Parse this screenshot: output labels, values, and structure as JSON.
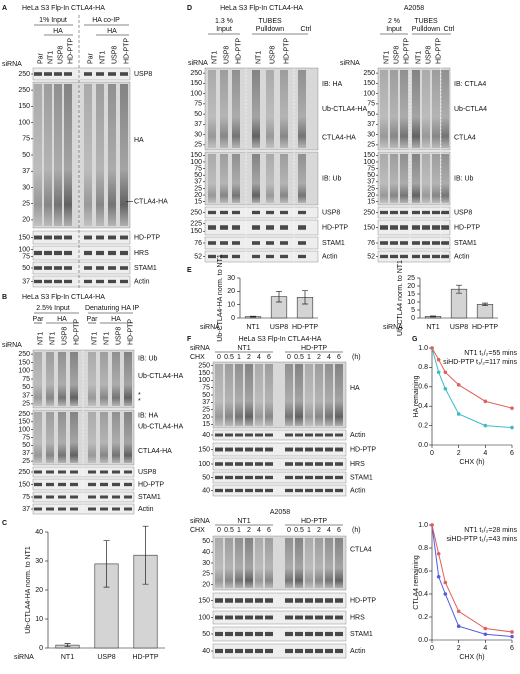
{
  "panels": {
    "A": {
      "label": "A",
      "title": "HeLa S3 Flp-In CTLA4-HA",
      "headers": [
        "1% Input",
        "HA co-IP"
      ],
      "groups": [
        "HA",
        "HA"
      ],
      "siRNA": "siRNA",
      "lanes": [
        "Par",
        "NT1",
        "USP8",
        "HD-PTP",
        "Par",
        "NT1",
        "USP8",
        "HD-PTP"
      ],
      "blots": [
        {
          "markers": [
            "250"
          ],
          "labels": [
            "USP8"
          ]
        },
        {
          "markers": [
            "250",
            "150",
            "100",
            "75",
            "50",
            "37",
            "30",
            "25",
            "20"
          ],
          "labels": [
            "HA",
            "CTLA4-HA"
          ]
        },
        {
          "markers": [
            "150"
          ],
          "labels": [
            "HD-PTP"
          ]
        },
        {
          "markers": [
            "100",
            "75"
          ],
          "labels": [
            "HRS"
          ]
        },
        {
          "markers": [
            "50"
          ],
          "labels": [
            "STAM1"
          ]
        },
        {
          "markers": [
            "37"
          ],
          "labels": [
            "Actin"
          ]
        }
      ]
    },
    "B": {
      "label": "B",
      "title": "HeLa S3 Flp-In CTLA4-HA",
      "headers": [
        "2.5% Input",
        "Denaturing HA IP"
      ],
      "groups": [
        "Par",
        "HA",
        "Par",
        "HA"
      ],
      "siRNA": "siRNA",
      "lanes": [
        "NT1",
        "NT1",
        "USP8",
        "HD-PTP",
        "NT1",
        "NT1",
        "USP8",
        "HD-PTP"
      ],
      "blots": [
        {
          "markers": [
            "250",
            "150",
            "100",
            "75",
            "50",
            "37",
            "25"
          ],
          "labels": [
            "IB: Ub",
            "Ub-CTLA4-HA",
            "*",
            "*"
          ]
        },
        {
          "markers": [
            "250",
            "150",
            "100",
            "75",
            "50",
            "37",
            "25"
          ],
          "labels": [
            "IB: HA",
            "Ub-CTLA4-HA",
            "CTLA4-HA"
          ]
        },
        {
          "markers": [
            "250"
          ],
          "labels": [
            "USP8"
          ]
        },
        {
          "markers": [
            "150"
          ],
          "labels": [
            "HD-PTP"
          ]
        },
        {
          "markers": [
            "75"
          ],
          "labels": [
            "STAM1"
          ]
        },
        {
          "markers": [
            "37"
          ],
          "labels": [
            "Actin"
          ]
        }
      ]
    },
    "C": {
      "label": "C"
    },
    "D": {
      "label": "D",
      "left": {
        "title": "HeLa S3 Flp-In CTLA4-HA",
        "headers": [
          "1.3 %",
          "Input",
          "TUBES",
          "Pulldown",
          "Ctrl"
        ],
        "siRNA": "siRNA",
        "lanes": [
          "NT1",
          "USP8",
          "HD-PTP",
          "NT1",
          "USP8",
          "HD-PTP"
        ],
        "blots": [
          {
            "markers": [
              "250",
              "150",
              "100",
              "75",
              "50",
              "37",
              "30",
              "25"
            ],
            "labels": [
              "IB: HA",
              "Ub-CTLA4-HA",
              "CTLA4-HA"
            ]
          },
          {
            "markers": [
              "150",
              "100",
              "75",
              "50",
              "37",
              "25",
              "20",
              "15"
            ],
            "labels": [
              "IB: Ub"
            ]
          },
          {
            "markers": [
              "250"
            ],
            "labels": [
              "USP8"
            ]
          },
          {
            "markers": [
              "225",
              "150"
            ],
            "labels": [
              "HD-PTP"
            ]
          },
          {
            "markers": [
              "76"
            ],
            "labels": [
              "STAM1"
            ]
          },
          {
            "markers": [
              "52"
            ],
            "labels": [
              "Actin"
            ]
          }
        ]
      },
      "right": {
        "title": "A2058",
        "headers": [
          "2 %",
          "Input",
          "TUBES",
          "Pulldown",
          "Ctrl"
        ],
        "siRNA": "siRNA",
        "lanes": [
          "NT1",
          "USP8",
          "HD-PTP",
          "NT1",
          "USP8",
          "HD-PTP"
        ],
        "blots": [
          {
            "markers": [
              "250",
              "150",
              "100",
              "75",
              "50",
              "37",
              "30",
              "25"
            ],
            "labels": [
              "IB: CTLA4",
              "Ub-CTLA4",
              "CTLA4"
            ]
          },
          {
            "markers": [
              "150",
              "100",
              "75",
              "50",
              "37",
              "25",
              "20",
              "15"
            ],
            "labels": [
              "IB: Ub"
            ]
          },
          {
            "markers": [
              "250"
            ],
            "labels": [
              "USP8"
            ]
          },
          {
            "markers": [
              "150"
            ],
            "labels": [
              "HD-PTP"
            ]
          },
          {
            "markers": [
              "76"
            ],
            "labels": [
              "STAM1"
            ]
          },
          {
            "markers": [
              "52"
            ],
            "labels": [
              "Actin"
            ]
          }
        ]
      }
    },
    "E": {
      "label": "E"
    },
    "F": {
      "label": "F",
      "top": {
        "title": "HeLa S3 Flp-In CTLA4-HA",
        "siRNA": "siRNA",
        "groups": [
          "NT1",
          "HD-PTP"
        ],
        "chx": "CHX",
        "times": [
          "0",
          "0.5",
          "1",
          "2",
          "4",
          "6",
          "0",
          "0.5",
          "1",
          "2",
          "4",
          "6"
        ],
        "unit": "(h)",
        "blots": [
          {
            "markers": [
              "250",
              "150",
              "100",
              "75",
              "50",
              "37",
              "25",
              "20",
              "15"
            ],
            "labels": [
              "HA"
            ]
          },
          {
            "markers": [
              "40"
            ],
            "labels": [
              "Actin"
            ]
          },
          {
            "markers": [
              "150"
            ],
            "labels": [
              "HD-PTP"
            ]
          },
          {
            "markers": [
              "100"
            ],
            "labels": [
              "HRS"
            ]
          },
          {
            "markers": [
              "50"
            ],
            "labels": [
              "STAM1"
            ]
          },
          {
            "markers": [
              "40"
            ],
            "labels": [
              "Actin"
            ]
          }
        ]
      },
      "bottom": {
        "title": "A2058",
        "siRNA": "siRNA",
        "groups": [
          "NT1",
          "HD-PTP"
        ],
        "chx": "CHX",
        "times": [
          "0",
          "0.5",
          "1",
          "2",
          "4",
          "6",
          "0",
          "0.5",
          "1",
          "2",
          "4",
          "6"
        ],
        "unit": "(h)",
        "blots": [
          {
            "markers": [
              "50",
              "40",
              "30",
              "25",
              "20"
            ],
            "labels": [
              "CTLA4"
            ]
          },
          {
            "markers": [
              "150"
            ],
            "labels": [
              "HD-PTP"
            ]
          },
          {
            "markers": [
              "100"
            ],
            "labels": [
              "HRS"
            ]
          },
          {
            "markers": [
              "50"
            ],
            "labels": [
              "STAM1"
            ]
          },
          {
            "markers": [
              "40"
            ],
            "labels": [
              "Actin"
            ]
          }
        ]
      }
    },
    "G": {
      "label": "G"
    }
  },
  "chart_data": [
    {
      "type": "bar",
      "ylabel": "Ub-CTLA4-HA norm. to NT1",
      "xlabel": "siRNA",
      "categories": [
        "NT1",
        "USP8",
        "HD-PTP"
      ],
      "values": [
        1,
        29,
        32
      ],
      "errors": [
        0.5,
        8,
        10
      ],
      "color": "#d4d4d4",
      "ylim": [
        0,
        40
      ],
      "yticks": [
        0,
        10,
        20,
        30,
        40
      ]
    },
    {
      "type": "bar",
      "ylabel": "Ub-CTLA4-HA norm. to NT1",
      "xlabel": "siRNA",
      "categories": [
        "NT1",
        "USP8",
        "HD-PTP"
      ],
      "values": [
        1,
        16,
        15.5
      ],
      "errors": [
        0.3,
        4,
        5
      ],
      "color": "#d4d4d4",
      "ylim": [
        0,
        30
      ],
      "yticks": [
        0,
        10,
        20,
        30
      ]
    },
    {
      "type": "bar",
      "ylabel": "Ub-CTLA4 norm. to NT1",
      "xlabel": "siRNA",
      "categories": [
        "NT1",
        "USP8",
        "HD-PTP"
      ],
      "values": [
        1,
        18,
        8.5
      ],
      "errors": [
        0.3,
        2.5,
        0.8
      ],
      "color": "#d4d4d4",
      "ylim": [
        0,
        25
      ],
      "yticks": [
        0,
        5,
        10,
        15,
        20,
        25
      ]
    },
    {
      "type": "line",
      "ylabel": "HA remaining",
      "xlabel": "CHX (h)",
      "x": [
        0,
        0.5,
        1,
        2,
        4,
        6
      ],
      "series": [
        {
          "name": "NT1 t₁/₂=55 mins",
          "color": "#3cbcc4",
          "values": [
            1.0,
            0.75,
            0.58,
            0.32,
            0.2,
            0.18
          ]
        },
        {
          "name": "siHD-PTP t₁/₂=117 mins",
          "color": "#e0605a",
          "values": [
            1.0,
            0.88,
            0.75,
            0.62,
            0.45,
            0.38
          ]
        }
      ],
      "xlim": [
        0,
        6
      ],
      "xticks": [
        0,
        2,
        4,
        6
      ],
      "ylim": [
        0,
        1
      ],
      "yticks": [
        {
          "value": 0,
          "label": "0.0"
        },
        0.2,
        0.4,
        0.6,
        0.8,
        {
          "value": 1,
          "label": "1.0"
        }
      ]
    },
    {
      "type": "line",
      "ylabel": "CTLA4 remaining",
      "xlabel": "CHX (h)",
      "x": [
        0,
        0.5,
        1,
        2,
        4,
        6
      ],
      "series": [
        {
          "name": "NT1 t₁/₂=28 mins",
          "color": "#5a5ae0",
          "values": [
            1.0,
            0.55,
            0.4,
            0.12,
            0.05,
            0.03
          ]
        },
        {
          "name": "siHD-PTP t₁/₂=43 mins",
          "color": "#e0605a",
          "values": [
            1.0,
            0.75,
            0.5,
            0.25,
            0.1,
            0.07
          ]
        }
      ],
      "xlim": [
        0,
        6
      ],
      "xticks": [
        0,
        2,
        4,
        6
      ],
      "ylim": [
        0,
        1
      ],
      "yticks": [
        {
          "value": 0,
          "label": "0.0"
        },
        0.2,
        0.4,
        0.6,
        0.8,
        {
          "value": 1,
          "label": "1.0"
        }
      ]
    }
  ]
}
